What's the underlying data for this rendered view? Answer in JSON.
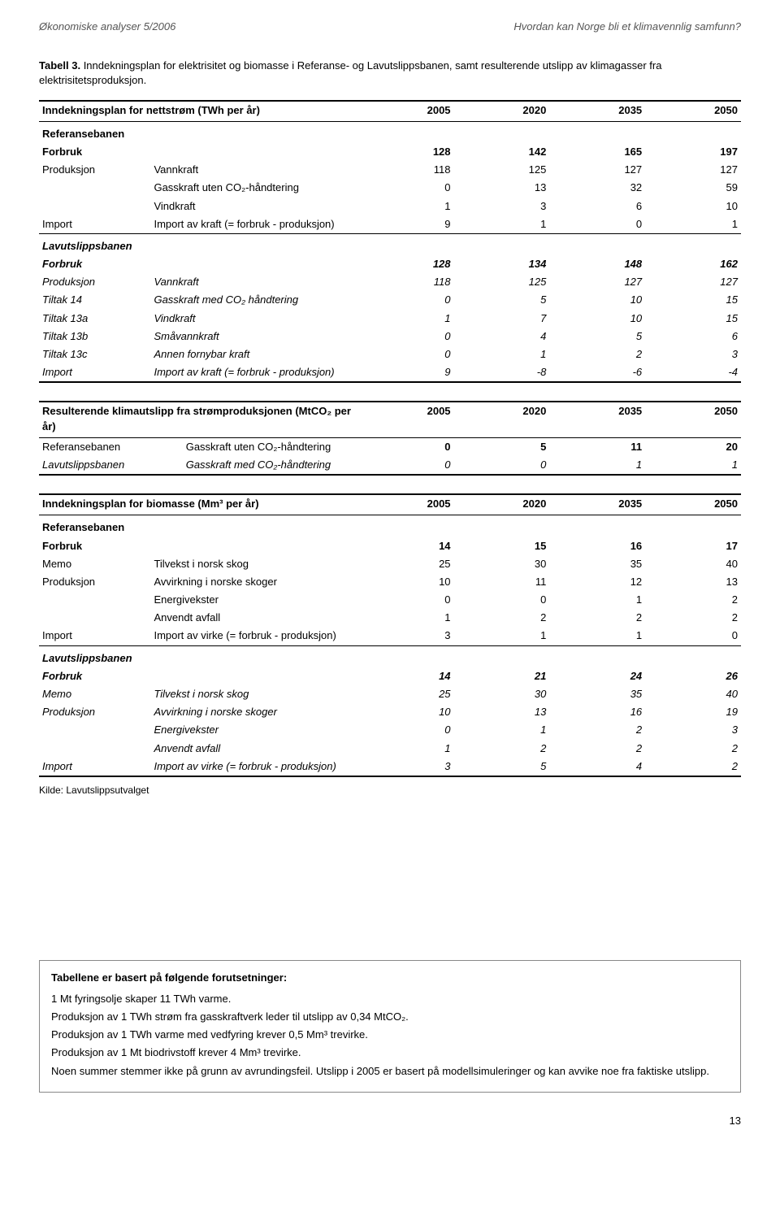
{
  "header": {
    "left": "Økonomiske analyser 5/2006",
    "right": "Hvordan kan Norge bli et klimavennlig samfunn?"
  },
  "caption": {
    "num": "Tabell 3.",
    "text": "Inndekningsplan for elektrisitet og biomasse i Referanse- og Lavutslippsbanen, samt resulterende utslipp av klimagasser fra elektrisitetsproduksjon."
  },
  "years": [
    "2005",
    "2020",
    "2035",
    "2050"
  ],
  "table1": {
    "title": "Inndekningsplan for nettstrøm (TWh per år)",
    "ref_label": "Referansebanen",
    "ref_rows": [
      {
        "a": "Forbruk",
        "b": "",
        "v": [
          "128",
          "142",
          "165",
          "197"
        ],
        "bold": true
      },
      {
        "a": "Produksjon",
        "b": "Vannkraft",
        "v": [
          "118",
          "125",
          "127",
          "127"
        ]
      },
      {
        "a": "",
        "b": "Gasskraft uten CO₂-håndtering",
        "v": [
          "0",
          "13",
          "32",
          "59"
        ]
      },
      {
        "a": "",
        "b": "Vindkraft",
        "v": [
          "1",
          "3",
          "6",
          "10"
        ]
      },
      {
        "a": "Import",
        "b": "Import av kraft (= forbruk - produksjon)",
        "v": [
          "9",
          "1",
          "0",
          "1"
        ]
      }
    ],
    "lav_label": "Lavutslippsbanen",
    "lav_rows": [
      {
        "a": "Forbruk",
        "b": "",
        "v": [
          "128",
          "134",
          "148",
          "162"
        ],
        "bold": true
      },
      {
        "a": "Produksjon",
        "b": "Vannkraft",
        "v": [
          "118",
          "125",
          "127",
          "127"
        ]
      },
      {
        "a": "Tiltak 14",
        "b": "Gasskraft med CO₂ håndtering",
        "v": [
          "0",
          "5",
          "10",
          "15"
        ]
      },
      {
        "a": "Tiltak 13a",
        "b": "Vindkraft",
        "v": [
          "1",
          "7",
          "10",
          "15"
        ]
      },
      {
        "a": "Tiltak 13b",
        "b": "Småvannkraft",
        "v": [
          "0",
          "4",
          "5",
          "6"
        ]
      },
      {
        "a": "Tiltak 13c",
        "b": "Annen fornybar kraft",
        "v": [
          "0",
          "1",
          "2",
          "3"
        ]
      },
      {
        "a": "Import",
        "b": "Import av kraft (= forbruk - produksjon)",
        "v": [
          "9",
          "-8",
          "-6",
          "-4"
        ]
      }
    ]
  },
  "table2": {
    "title": "Resulterende klimautslipp fra strømproduksjonen (MtCO₂ per år)",
    "rows": [
      {
        "a": "Referansebanen",
        "b": "Gasskraft uten CO₂-håndtering",
        "v": [
          "0",
          "5",
          "11",
          "20"
        ],
        "italic": false
      },
      {
        "a": "Lavutslippsbanen",
        "b": "Gasskraft med CO₂-håndtering",
        "v": [
          "0",
          "0",
          "1",
          "1"
        ],
        "italic": true
      }
    ]
  },
  "table3": {
    "title": "Inndekningsplan for biomasse (Mm³ per år)",
    "ref_label": "Referansebanen",
    "ref_rows": [
      {
        "a": "Forbruk",
        "b": "",
        "v": [
          "14",
          "15",
          "16",
          "17"
        ],
        "bold": true
      },
      {
        "a": "Memo",
        "b": "Tilvekst i norsk skog",
        "v": [
          "25",
          "30",
          "35",
          "40"
        ]
      },
      {
        "a": "Produksjon",
        "b": "Avvirkning i norske skoger",
        "v": [
          "10",
          "11",
          "12",
          "13"
        ]
      },
      {
        "a": "",
        "b": "Energivekster",
        "v": [
          "0",
          "0",
          "1",
          "2"
        ]
      },
      {
        "a": "",
        "b": "Anvendt avfall",
        "v": [
          "1",
          "2",
          "2",
          "2"
        ]
      },
      {
        "a": "Import",
        "b": "Import av virke (= forbruk - produksjon)",
        "v": [
          "3",
          "1",
          "1",
          "0"
        ]
      }
    ],
    "lav_label": "Lavutslippsbanen",
    "lav_rows": [
      {
        "a": "Forbruk",
        "b": "",
        "v": [
          "14",
          "21",
          "24",
          "26"
        ],
        "bold": true
      },
      {
        "a": "Memo",
        "b": "Tilvekst i norsk skog",
        "v": [
          "25",
          "30",
          "35",
          "40"
        ]
      },
      {
        "a": "Produksjon",
        "b": "Avvirkning i norske skoger",
        "v": [
          "10",
          "13",
          "16",
          "19"
        ]
      },
      {
        "a": "",
        "b": "Energivekster",
        "v": [
          "0",
          "1",
          "2",
          "3"
        ]
      },
      {
        "a": "",
        "b": "Anvendt avfall",
        "v": [
          "1",
          "2",
          "2",
          "2"
        ]
      },
      {
        "a": "Import",
        "b": "Import av virke (= forbruk - produksjon)",
        "v": [
          "3",
          "5",
          "4",
          "2"
        ]
      }
    ]
  },
  "source": "Kilde: Lavutslippsutvalget",
  "footnote": {
    "title": "Tabellene er basert på følgende forutsetninger:",
    "lines": [
      "1 Mt fyringsolje skaper 11 TWh varme.",
      "Produksjon av 1 TWh strøm fra gasskraftverk leder til utslipp av 0,34 MtCO₂.",
      "Produksjon av 1 TWh varme med vedfyring krever 0,5 Mm³ trevirke.",
      "Produksjon av 1 Mt biodrivstoff krever 4 Mm³ trevirke.",
      "Noen summer stemmer ikke på grunn av avrundingsfeil. Utslipp i 2005 er basert på modellsimuleringer og kan avvike noe fra faktiske utslipp."
    ]
  },
  "page": "13",
  "colors": {
    "text": "#000000",
    "muted": "#555555",
    "box_border": "#888888",
    "background": "#ffffff"
  }
}
